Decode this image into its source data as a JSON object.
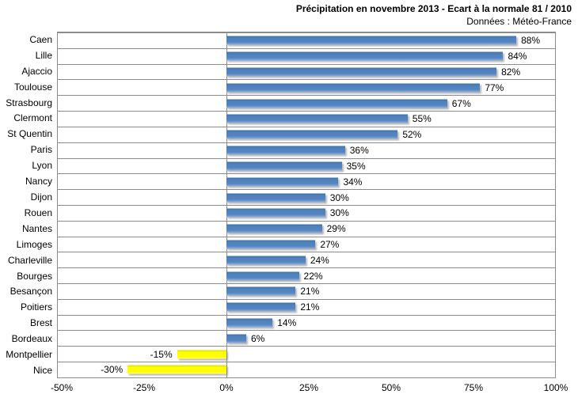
{
  "header": {
    "title": "Précipitation en novembre 2013 - Ecart à la normale 81 / 2010",
    "subtitle": "Données : Météo-France"
  },
  "chart_data": {
    "type": "bar",
    "orientation": "horizontal",
    "title": "Précipitation en novembre 2013 - Ecart à la normale 81 / 2010",
    "subtitle": "Données : Météo-France",
    "categories": [
      "Caen",
      "Lille",
      "Ajaccio",
      "Toulouse",
      "Strasbourg",
      "Clermont",
      "St Quentin",
      "Paris",
      "Lyon",
      "Nancy",
      "Dijon",
      "Rouen",
      "Nantes",
      "Limoges",
      "Charleville",
      "Bourges",
      "Besançon",
      "Poitiers",
      "Brest",
      "Bordeaux",
      "Montpellier",
      "Nice"
    ],
    "values": [
      88,
      84,
      82,
      77,
      67,
      55,
      52,
      36,
      35,
      34,
      30,
      30,
      29,
      27,
      24,
      22,
      21,
      21,
      14,
      6,
      -15,
      -30
    ],
    "value_labels": [
      "88%",
      "84%",
      "82%",
      "77%",
      "67%",
      "55%",
      "52%",
      "36%",
      "35%",
      "34%",
      "30%",
      "30%",
      "29%",
      "27%",
      "24%",
      "22%",
      "21%",
      "21%",
      "14%",
      "6%",
      "-15%",
      "-30%"
    ],
    "xlim": [
      -50,
      100
    ],
    "x_tick_values": [
      -50,
      -25,
      0,
      25,
      50,
      75,
      100
    ],
    "x_tick_labels": [
      "-50%",
      "-25%",
      "0%",
      "25%",
      "50%",
      "75%",
      "100%"
    ],
    "xlabel": "",
    "ylabel": "",
    "grid": "horizontal-category-lines",
    "legend": "none",
    "positive_color": "#4F81BD",
    "negative_color": "#FFFF00",
    "gridline_color": "#8C8C8C",
    "text_color": "#000000"
  }
}
